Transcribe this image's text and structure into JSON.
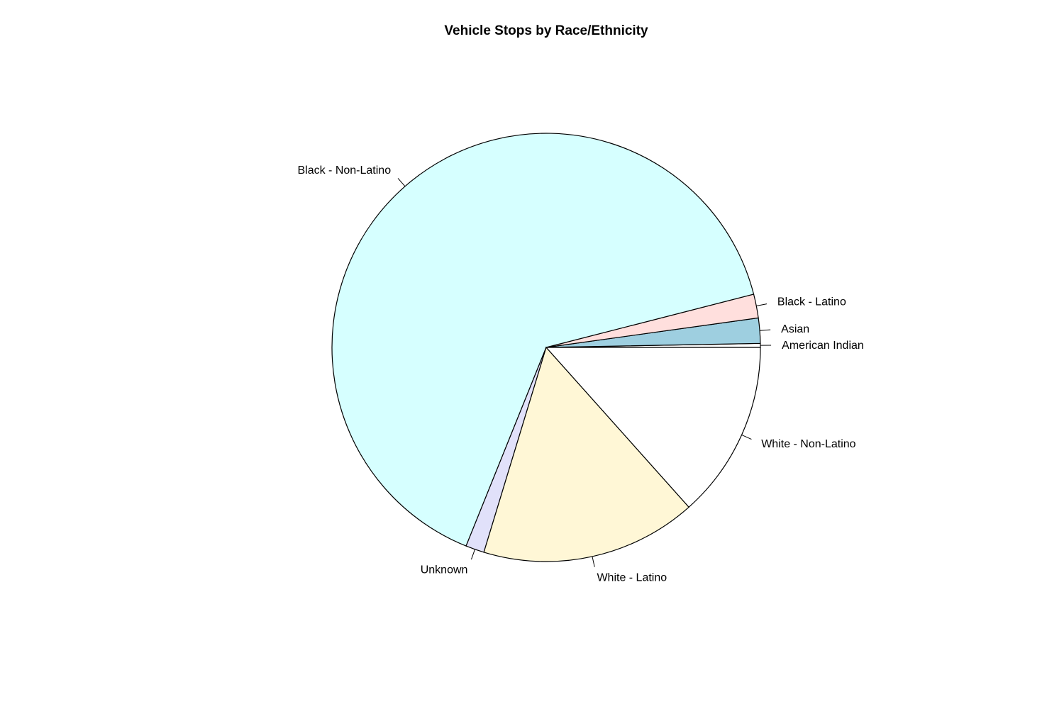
{
  "chart_data": {
    "type": "pie",
    "title": "Vehicle Stops by Race/Ethnicity",
    "start_angle_deg": 0,
    "direction": "counterclockwise",
    "border_color": "#000000",
    "slices": [
      {
        "label": "American Indian",
        "value": 0.3,
        "color": "#ffffff"
      },
      {
        "label": "Asian",
        "value": 1.9,
        "color": "#9ecfe0"
      },
      {
        "label": "Black - Latino",
        "value": 1.8,
        "color": "#ffdfdd"
      },
      {
        "label": "Black - Non-Latino",
        "value": 64.9,
        "color": "#d6ffff"
      },
      {
        "label": "Unknown",
        "value": 1.4,
        "color": "#e1e1fa"
      },
      {
        "label": "White - Latino",
        "value": 16.3,
        "color": "#fff7d6"
      },
      {
        "label": "White - Non-Latino",
        "value": 13.4,
        "color": "#ffffff"
      }
    ]
  }
}
